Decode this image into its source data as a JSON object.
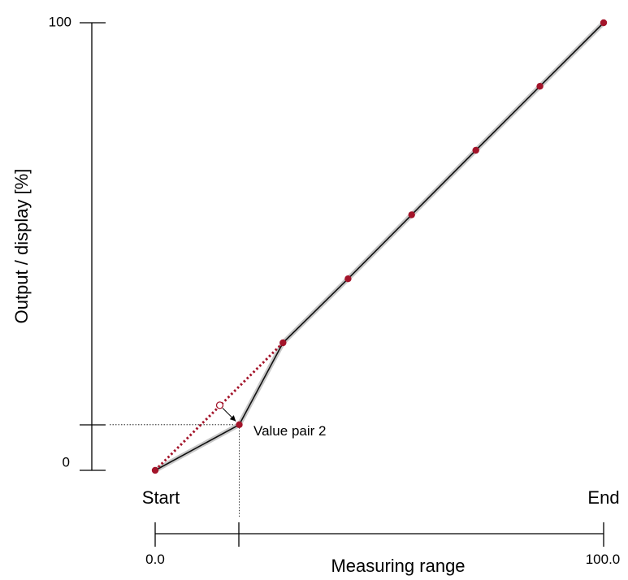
{
  "chart_data": {
    "type": "line",
    "title": "",
    "xlabel": "Measuring range",
    "ylabel": "Output / display [%]",
    "xlim": [
      0,
      100
    ],
    "ylim": [
      0,
      100
    ],
    "x_tick_labels": [
      "0.0",
      "100.0"
    ],
    "y_tick_labels": [
      "0",
      "100"
    ],
    "x_end_labels": {
      "start": "Start",
      "end": "End"
    },
    "annotation": "Value pair 2",
    "series": [
      {
        "x": [
          0,
          18.75,
          28.5,
          43.0,
          57.2,
          71.5,
          85.8,
          100
        ],
        "y": [
          0,
          10.2,
          28.5,
          42.8,
          57.1,
          71.5,
          85.8,
          100
        ]
      }
    ],
    "reference_line": {
      "x": [
        0,
        28.5
      ],
      "y": [
        0,
        28.5
      ]
    },
    "value_pair_2": {
      "x": 18.75,
      "y": 10.2,
      "ideal_y": 14.0
    },
    "colors": {
      "marker": "#a3142a",
      "line": "#111111",
      "halo": "#c8c8c8",
      "reference": "#a3142a"
    }
  }
}
